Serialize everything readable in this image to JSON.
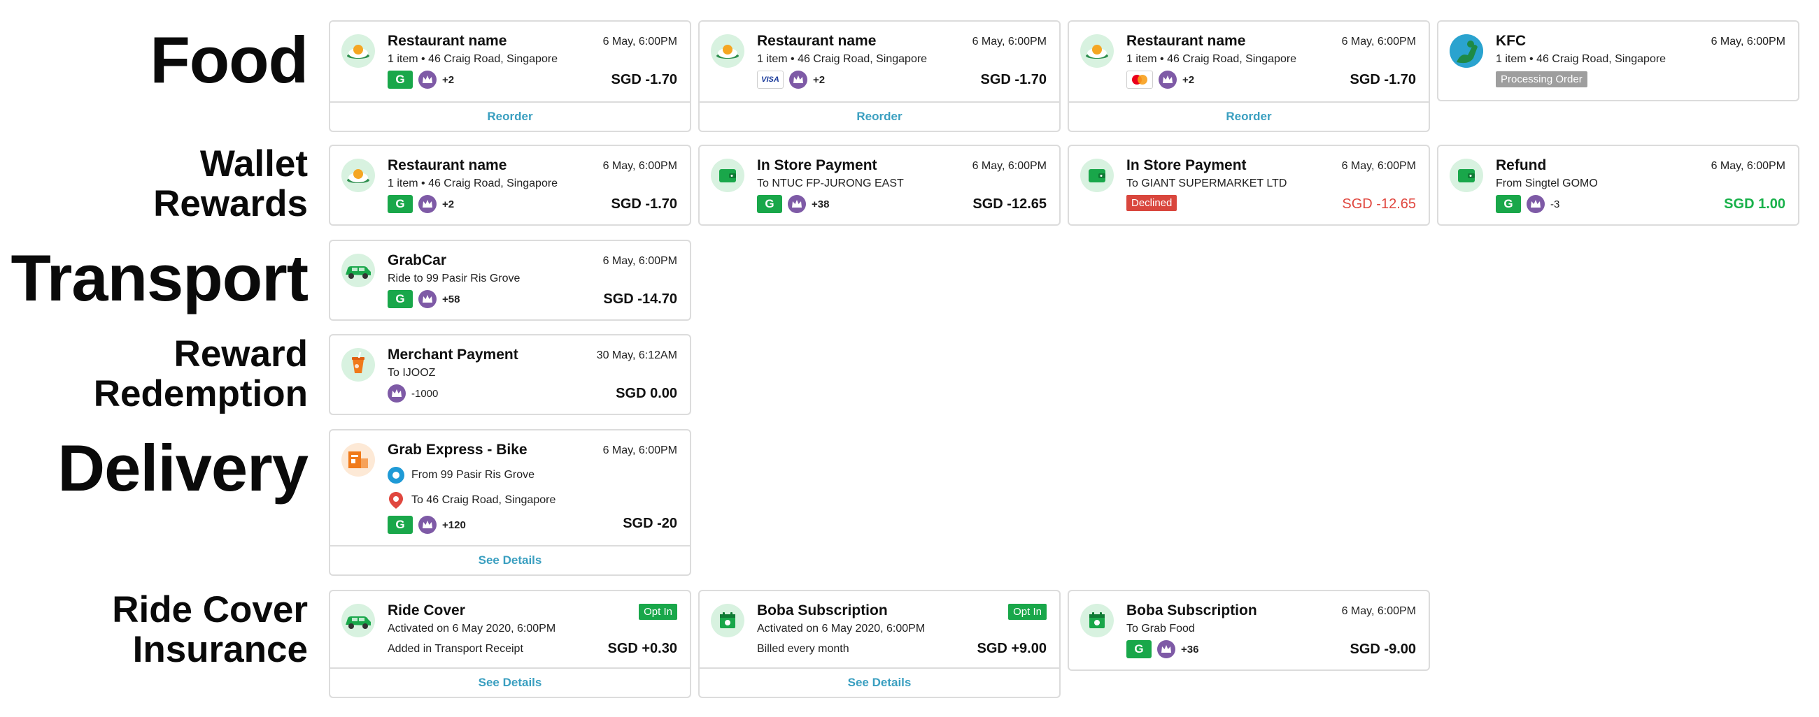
{
  "sections": {
    "food": "Food",
    "wallet_line1": "Wallet",
    "wallet_line2": "Rewards",
    "transport": "Transport",
    "reward_line1": "Reward",
    "reward_line2": "Redemption",
    "delivery": "Delivery",
    "ride_line1": "Ride Cover",
    "ride_line2": "Insurance"
  },
  "food": [
    {
      "title": "Restaurant name",
      "date": "6 May, 6:00PM",
      "subtitle": "1 item • 46 Craig Road, Singapore",
      "payment": "grabpay",
      "points": "+2",
      "amount": "SGD -1.70",
      "action": "Reorder"
    },
    {
      "title": "Restaurant name",
      "date": "6 May, 6:00PM",
      "subtitle": "1 item • 46 Craig Road, Singapore",
      "payment": "visa",
      "payment_label": "VISA",
      "points": "+2",
      "amount": "SGD -1.70",
      "action": "Reorder"
    },
    {
      "title": "Restaurant name",
      "date": "6 May, 6:00PM",
      "subtitle": "1 item • 46 Craig Road, Singapore",
      "payment": "mastercard",
      "points": "+2",
      "amount": "SGD -1.70",
      "action": "Reorder"
    },
    {
      "title": "KFC",
      "date": "6 May, 6:00PM",
      "subtitle": "1 item • 46 Craig Road, Singapore",
      "status": "Processing Order"
    }
  ],
  "wallet": [
    {
      "title": "Restaurant name",
      "date": "6 May, 6:00PM",
      "subtitle": "1 item • 46 Craig Road, Singapore",
      "points": "+2",
      "amount": "SGD -1.70"
    },
    {
      "title": "In Store Payment",
      "date": "6 May, 6:00PM",
      "subtitle": "To NTUC FP-JURONG EAST",
      "points": "+38",
      "amount": "SGD -12.65"
    },
    {
      "title": "In Store Payment",
      "date": "6 May, 6:00PM",
      "subtitle": "To GIANT SUPERMARKET LTD",
      "status": "Declined",
      "amount": "SGD -12.65"
    },
    {
      "title": "Refund",
      "date": "6 May, 6:00PM",
      "subtitle": "From Singtel GOMO",
      "points": "-3",
      "amount": "SGD 1.00"
    }
  ],
  "transport": {
    "title": "GrabCar",
    "date": "6 May, 6:00PM",
    "subtitle": "Ride to 99 Pasir Ris Grove",
    "points": "+58",
    "amount": "SGD -14.70"
  },
  "reward": {
    "title": "Merchant Payment",
    "date": "30 May, 6:12AM",
    "subtitle": "To IJOOZ",
    "points": "-1000",
    "amount": "SGD 0.00"
  },
  "delivery": {
    "title": "Grab Express - Bike",
    "date": "6 May, 6:00PM",
    "from": "From 99 Pasir Ris Grove",
    "to": "To 46 Craig Road, Singapore",
    "points": "+120",
    "amount": "SGD -20",
    "action": "See Details"
  },
  "insurance": [
    {
      "title": "Ride Cover",
      "badge": "Opt In",
      "subtitle": "Activated on 6 May 2020, 6:00PM",
      "note": "Added in Transport Receipt",
      "amount": "SGD +0.30",
      "action": "See Details"
    },
    {
      "title": "Boba Subscription",
      "badge": "Opt In",
      "subtitle": "Activated on 6 May 2020, 6:00PM",
      "note": "Billed every month",
      "amount": "SGD +9.00",
      "action": "See Details"
    },
    {
      "title": "Boba Subscription",
      "date": "6 May, 6:00PM",
      "subtitle": "To Grab Food",
      "points": "+36",
      "amount": "SGD -9.00"
    }
  ],
  "colors": {
    "grab_green": "#19a74a",
    "link_blue": "#3a9fc0",
    "decline_red": "#d9463d",
    "refund_green": "#18b14a",
    "rewards_purple": "#7e5aa6"
  },
  "icons": {
    "food": "fried-egg-icon",
    "wallet": "wallet-icon",
    "car": "car-icon",
    "drink": "drink-cup-icon",
    "parcel": "parcel-icon",
    "calendar": "calendar-icon",
    "crown": "crown-icon",
    "kfc": "kfc-logo"
  }
}
